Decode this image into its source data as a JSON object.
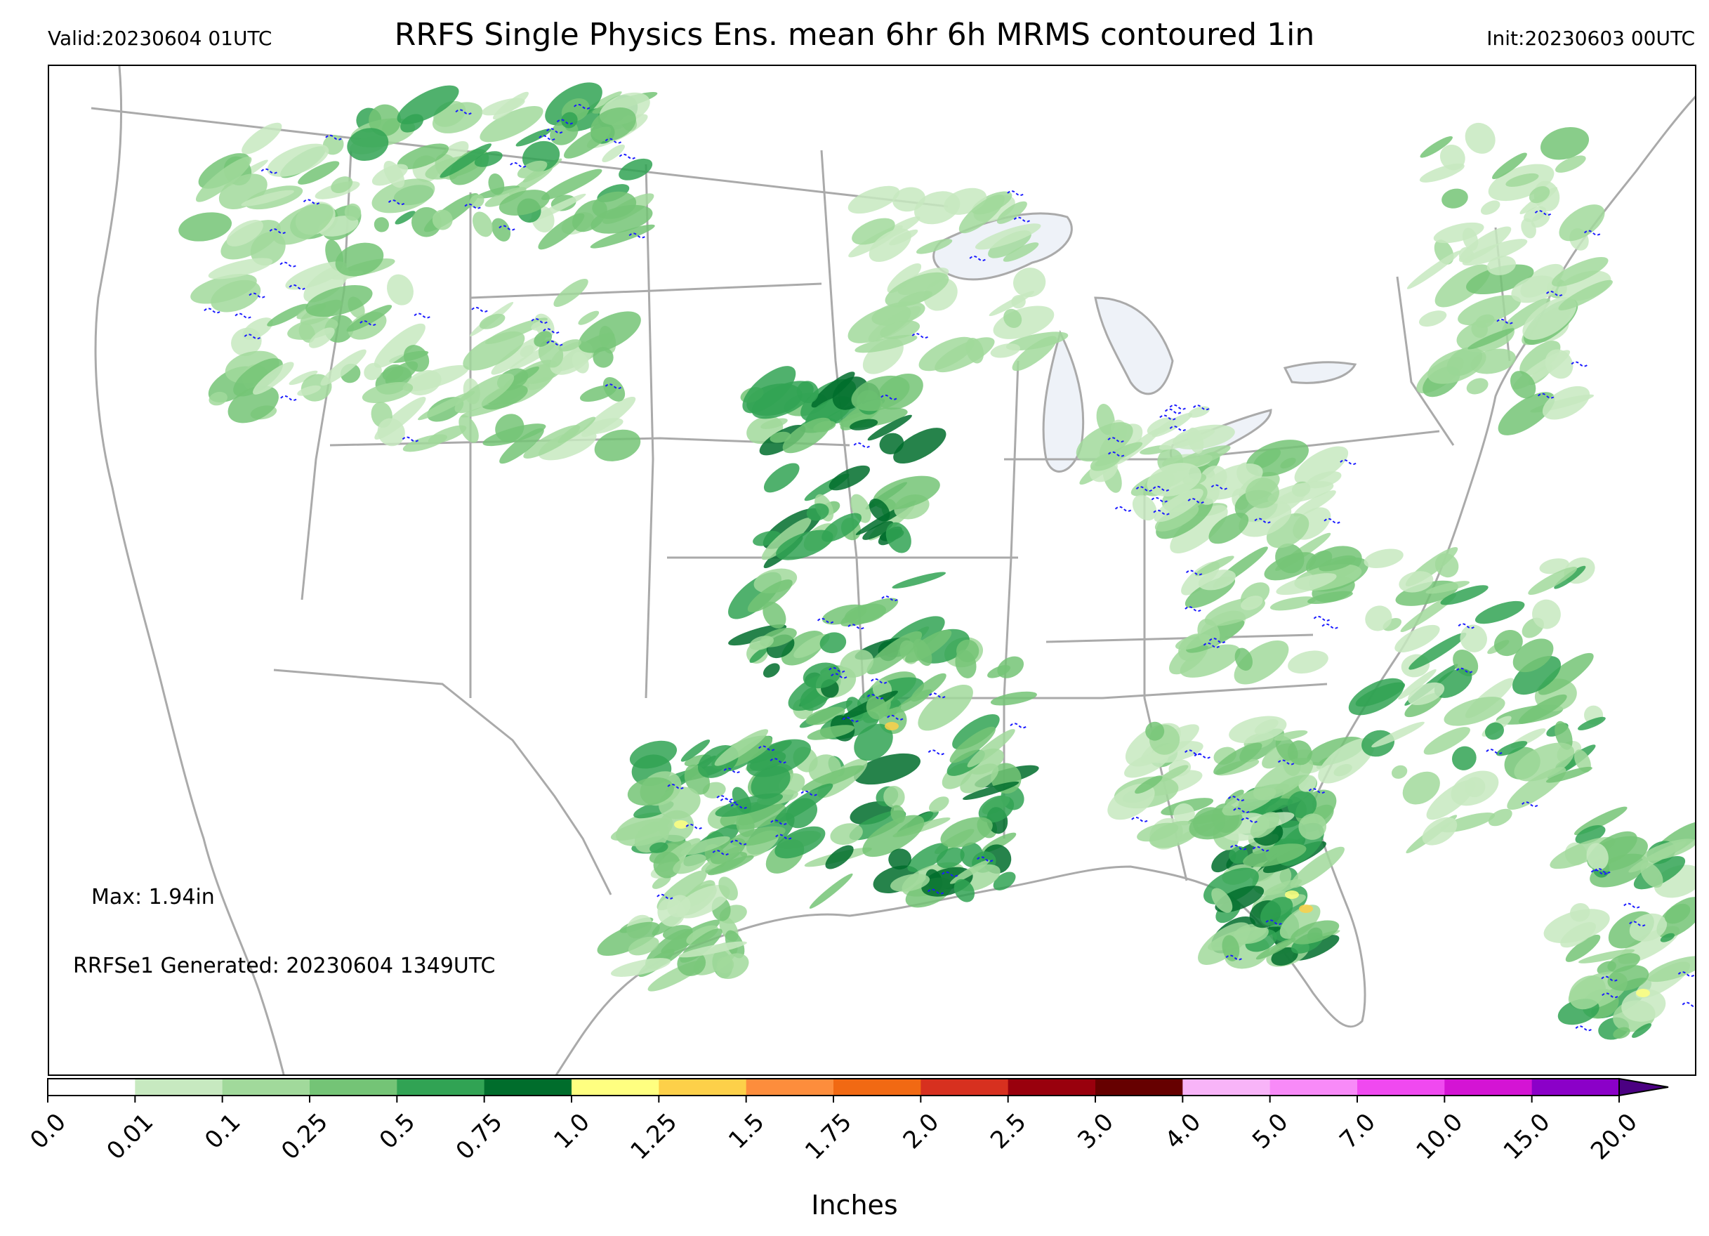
{
  "header": {
    "valid": "Valid:20230604 01UTC",
    "title": "RRFS Single Physics Ens. mean 6hr 6h MRMS contoured 1in",
    "init": "Init:20230603 00UTC"
  },
  "annotations": {
    "max": "Max: 1.94in",
    "generated": "RRFSe1 Generated: 20230604 1349UTC"
  },
  "colorbar": {
    "label": "Inches",
    "ticks": [
      "0.0",
      "0.01",
      "0.1",
      "0.25",
      "0.5",
      "0.75",
      "1.0",
      "1.25",
      "1.5",
      "1.75",
      "2.0",
      "2.5",
      "3.0",
      "4.0",
      "5.0",
      "7.0",
      "10.0",
      "15.0",
      "20.0"
    ],
    "colors": [
      "#ffffff",
      "#c7e9c0",
      "#a1d99b",
      "#74c476",
      "#31a354",
      "#006d2c",
      "#ffff80",
      "#fdd049",
      "#fd8d3c",
      "#f16913",
      "#d7301f",
      "#99000d",
      "#660000",
      "#f8b4f8",
      "#f88af8",
      "#f049f0",
      "#d414d4",
      "#8b00c8"
    ],
    "extend_color": "#4b0082"
  },
  "map": {
    "precip_colors": {
      "light": "#c7e9c0",
      "low": "#a1d99b",
      "mid": "#74c476",
      "high": "#31a354",
      "heavy": "#006d2c",
      "yellow": "#ffff80",
      "orange": "#fdd049",
      "red": "#d7301f",
      "contour": "#1a1aff"
    },
    "border_color": "#aaaaaa",
    "lake_color": "#eef2f8"
  }
}
